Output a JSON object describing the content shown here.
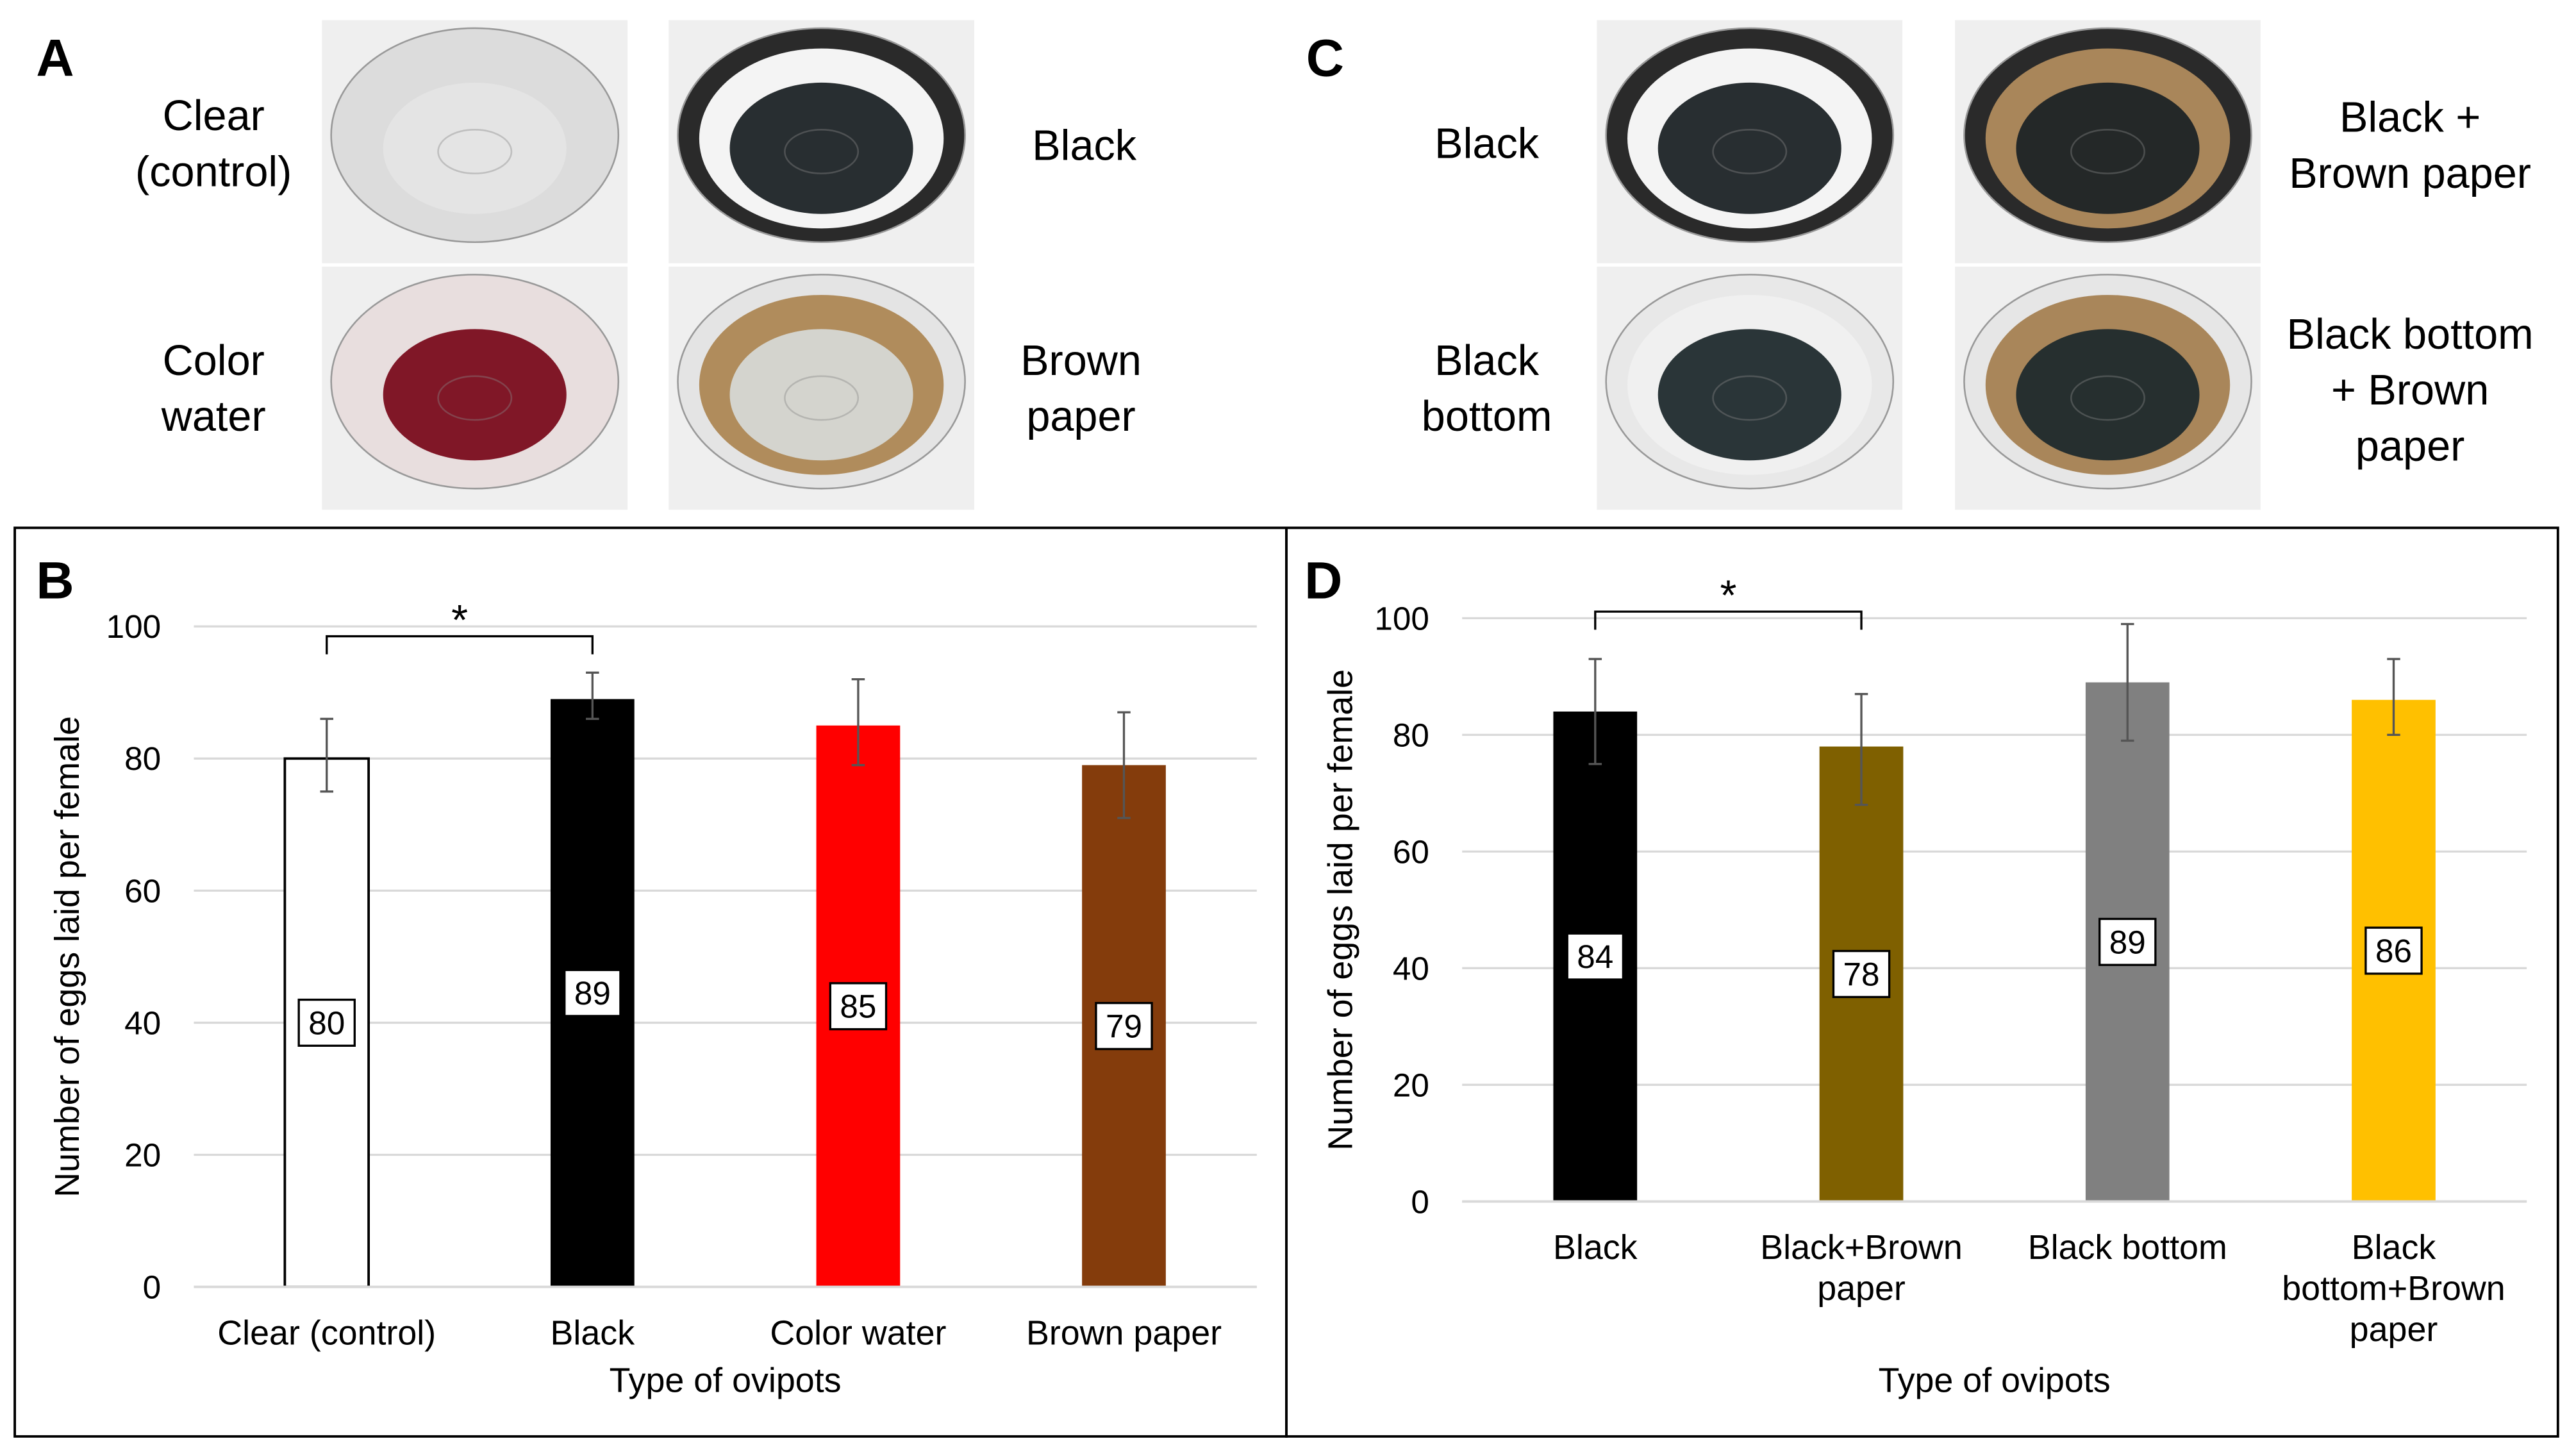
{
  "panels": {
    "A": {
      "letter": "A",
      "photos": [
        {
          "label_lines": [
            "Clear",
            "(control)"
          ],
          "water": "#e4e4e4",
          "rim": "#dcdcdc",
          "liner": null
        },
        {
          "label_lines": [
            "Black"
          ],
          "water": "#1c2326",
          "rim": "#2a2a2a",
          "liner": "#f4f4f4"
        },
        {
          "label_lines": [
            "Color",
            "water"
          ],
          "water": "#7a0c1c",
          "rim": "#e8dede",
          "liner": null
        },
        {
          "label_lines": [
            "Brown",
            "paper"
          ],
          "water": "#d6d8d4",
          "rim": "#e4e4e4",
          "liner": "#b08c5c"
        }
      ]
    },
    "C": {
      "letter": "C",
      "photos": [
        {
          "label_lines": [
            "Black"
          ],
          "water": "#1c2326",
          "rim": "#2a2a2a",
          "liner": "#f4f4f4"
        },
        {
          "label_lines": [
            "Black +",
            "Brown paper"
          ],
          "water": "#1c2326",
          "rim": "#2a2a2a",
          "liner": "#a9865a"
        },
        {
          "label_lines": [
            "Black",
            "bottom"
          ],
          "water": "#1f2a2d",
          "rim": "#e8e8e8",
          "liner": "#f0f0f0"
        },
        {
          "label_lines": [
            "Black bottom",
            "+ Brown",
            "paper"
          ],
          "water": "#1f2a2d",
          "rim": "#e6e6e6",
          "liner": "#a9865a"
        }
      ]
    }
  },
  "chart_data": [
    {
      "panel": "B",
      "type": "bar",
      "xlabel": "Type of ovipots",
      "ylabel": "Number of eggs laid per female",
      "ylim": [
        0,
        100
      ],
      "yticks": [
        0,
        20,
        40,
        60,
        80,
        100
      ],
      "grid": true,
      "categories": [
        [
          "Clear (control)"
        ],
        [
          "Black"
        ],
        [
          "Color water"
        ],
        [
          "Brown paper"
        ]
      ],
      "values": [
        80,
        89,
        85,
        79
      ],
      "error_low": [
        75,
        86,
        79,
        71
      ],
      "error_high": [
        86,
        93,
        92,
        87
      ],
      "colors": [
        "#ffffff",
        "#000000",
        "#ff0000",
        "#843c0c"
      ],
      "significance": {
        "between": [
          0,
          1
        ],
        "label": "*"
      }
    },
    {
      "panel": "D",
      "type": "bar",
      "xlabel": "Type of ovipots",
      "ylabel": "Number of eggs laid per female",
      "ylim": [
        0,
        100
      ],
      "yticks": [
        0,
        20,
        40,
        60,
        80,
        100
      ],
      "grid": true,
      "categories": [
        [
          "Black"
        ],
        [
          "Black+Brown",
          "paper"
        ],
        [
          "Black bottom"
        ],
        [
          "Black",
          "bottom+Brown",
          "paper"
        ]
      ],
      "values": [
        84,
        78,
        89,
        86
      ],
      "error_low": [
        75,
        68,
        79,
        80
      ],
      "error_high": [
        93,
        87,
        99,
        93
      ],
      "colors": [
        "#000000",
        "#7f6000",
        "#808080",
        "#ffc000"
      ],
      "significance": {
        "between": [
          0,
          1
        ],
        "label": "*"
      }
    }
  ]
}
